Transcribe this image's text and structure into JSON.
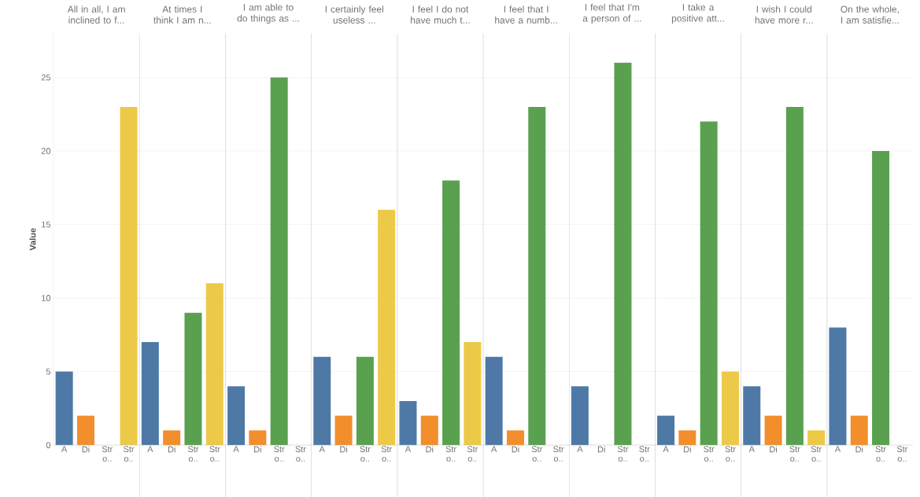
{
  "chart_data": [
    {
      "type": "bar",
      "title": "All in all, I am inclined to f...",
      "ylabel": "Value",
      "categories": [
        "A",
        "Di",
        "Str o..",
        "Str o.."
      ],
      "values": [
        5,
        2,
        null,
        23
      ],
      "colors": [
        "#4e79a7",
        "#f28e2b",
        "#59a14f",
        "#edc948"
      ],
      "ylim": [
        0,
        28
      ],
      "yticks": [
        0,
        5,
        10,
        15,
        20,
        25
      ],
      "grid": "y"
    },
    {
      "type": "bar",
      "title": "At times I think I am n...",
      "categories": [
        "A",
        "Di",
        "Str o..",
        "Str o.."
      ],
      "values": [
        7,
        1,
        9,
        11
      ],
      "colors": [
        "#4e79a7",
        "#f28e2b",
        "#59a14f",
        "#edc948"
      ],
      "ylim": [
        0,
        28
      ],
      "yticks": [
        0,
        5,
        10,
        15,
        20,
        25
      ],
      "grid": "y",
      "tick_labels": "x"
    },
    {
      "type": "bar",
      "title": "I am able to do things as ...",
      "categories": [
        "A",
        "Di",
        "Str o..",
        "Str o.."
      ],
      "values": [
        4,
        1,
        25,
        null
      ],
      "colors": [
        "#4e79a7",
        "#f28e2b",
        "#59a14f",
        "#edc948"
      ],
      "ylim": [
        0,
        28
      ],
      "yticks": [
        0,
        5,
        10,
        15,
        20,
        25
      ],
      "grid": "y",
      "tick_labels": "x"
    },
    {
      "type": "bar",
      "title": "I certainly feel useless ...",
      "categories": [
        "A",
        "Di",
        "Str o..",
        "Str o.."
      ],
      "values": [
        6,
        2,
        6,
        16
      ],
      "colors": [
        "#4e79a7",
        "#f28e2b",
        "#59a14f",
        "#edc948"
      ],
      "ylim": [
        0,
        28
      ],
      "yticks": [
        0,
        5,
        10,
        15,
        20,
        25
      ],
      "grid": "y",
      "tick_labels": "x"
    },
    {
      "type": "bar",
      "title": "I feel I do not have much t...",
      "categories": [
        "A",
        "Di",
        "Str o..",
        "Str o.."
      ],
      "values": [
        3,
        2,
        18,
        7
      ],
      "colors": [
        "#4e79a7",
        "#f28e2b",
        "#59a14f",
        "#edc948"
      ],
      "ylim": [
        0,
        28
      ],
      "yticks": [
        0,
        5,
        10,
        15,
        20,
        25
      ],
      "grid": "y",
      "tick_labels": "x"
    },
    {
      "type": "bar",
      "title": "I feel that I have a numb...",
      "categories": [
        "A",
        "Di",
        "Str o..",
        "Str o.."
      ],
      "values": [
        6,
        1,
        23,
        null
      ],
      "colors": [
        "#4e79a7",
        "#f28e2b",
        "#59a14f",
        "#edc948"
      ],
      "ylim": [
        0,
        28
      ],
      "yticks": [
        0,
        5,
        10,
        15,
        20,
        25
      ],
      "grid": "y",
      "tick_labels": "x"
    },
    {
      "type": "bar",
      "title": "I feel that I'm a person of ...",
      "categories": [
        "A",
        "Di",
        "Str o..",
        "Str o.."
      ],
      "values": [
        4,
        null,
        26,
        null
      ],
      "colors": [
        "#4e79a7",
        "#f28e2b",
        "#59a14f",
        "#edc948"
      ],
      "ylim": [
        0,
        28
      ],
      "yticks": [
        0,
        5,
        10,
        15,
        20,
        25
      ],
      "grid": "y",
      "tick_labels": "x"
    },
    {
      "type": "bar",
      "title": "I take a positive att...",
      "categories": [
        "A",
        "Di",
        "Str o..",
        "Str o.."
      ],
      "values": [
        2,
        1,
        22,
        5
      ],
      "colors": [
        "#4e79a7",
        "#f28e2b",
        "#59a14f",
        "#edc948"
      ],
      "ylim": [
        0,
        28
      ],
      "yticks": [
        0,
        5,
        10,
        15,
        20,
        25
      ],
      "grid": "y",
      "tick_labels": "x"
    },
    {
      "type": "bar",
      "title": "I wish I could have more r...",
      "categories": [
        "A",
        "Di",
        "Str o..",
        "Str o.."
      ],
      "values": [
        4,
        2,
        23,
        1
      ],
      "colors": [
        "#4e79a7",
        "#f28e2b",
        "#59a14f",
        "#edc948"
      ],
      "ylim": [
        0,
        28
      ],
      "yticks": [
        0,
        5,
        10,
        15,
        20,
        25
      ],
      "grid": "y",
      "tick_labels": "x"
    },
    {
      "type": "bar",
      "title": "On the whole, I am satisfie...",
      "categories": [
        "A",
        "Di",
        "Str o..",
        "Str o.."
      ],
      "values": [
        8,
        2,
        20,
        null
      ],
      "colors": [
        "#4e79a7",
        "#f28e2b",
        "#59a14f",
        "#edc948"
      ],
      "ylim": [
        0,
        28
      ],
      "yticks": [
        0,
        5,
        10,
        15,
        20,
        25
      ],
      "grid": "y",
      "tick_labels": "x"
    }
  ]
}
